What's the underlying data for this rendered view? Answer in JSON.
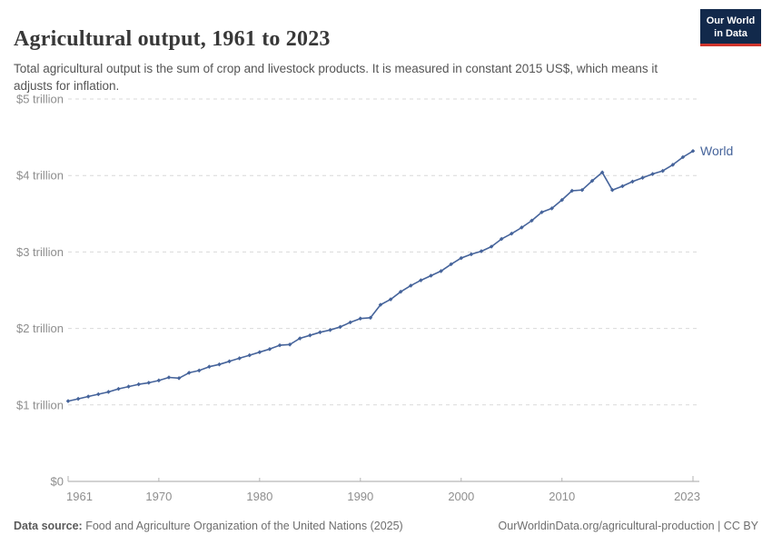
{
  "header": {
    "title": "Agricultural output, 1961 to 2023",
    "subtitle": "Total agricultural output is the sum of crop and livestock products. It is measured in constant 2015 US$, which means it adjusts for inflation."
  },
  "logo": {
    "line1": "Our World",
    "line2": "in Data"
  },
  "chart_data": {
    "type": "line",
    "title": "Agricultural output, 1961 to 2023",
    "ylabel": "",
    "xlabel": "",
    "unit": "constant 2015 US$",
    "ylim": [
      0,
      5
    ],
    "grid": "horizontal-dashed",
    "legend_position": "end-of-line",
    "y_ticks": [
      0,
      1,
      2,
      3,
      4,
      5
    ],
    "y_tick_labels": [
      "$0",
      "$1 trillion",
      "$2 trillion",
      "$3 trillion",
      "$4 trillion",
      "$5 trillion"
    ],
    "x_tick_years": [
      1961,
      1970,
      1980,
      1990,
      2000,
      2010,
      2023
    ],
    "x_tick_labels": [
      "1961",
      "1970",
      "1980",
      "1990",
      "2000",
      "2010",
      "2023"
    ],
    "x": [
      1961,
      1962,
      1963,
      1964,
      1965,
      1966,
      1967,
      1968,
      1969,
      1970,
      1971,
      1972,
      1973,
      1974,
      1975,
      1976,
      1977,
      1978,
      1979,
      1980,
      1981,
      1982,
      1983,
      1984,
      1985,
      1986,
      1987,
      1988,
      1989,
      1990,
      1991,
      1992,
      1993,
      1994,
      1995,
      1996,
      1997,
      1998,
      1999,
      2000,
      2001,
      2002,
      2003,
      2004,
      2005,
      2006,
      2007,
      2008,
      2009,
      2010,
      2011,
      2012,
      2013,
      2014,
      2015,
      2016,
      2017,
      2018,
      2019,
      2020,
      2021,
      2022,
      2023
    ],
    "series": [
      {
        "name": "World",
        "unit": "trillion US$",
        "values": [
          1.05,
          1.08,
          1.11,
          1.14,
          1.17,
          1.21,
          1.24,
          1.27,
          1.29,
          1.32,
          1.36,
          1.35,
          1.42,
          1.45,
          1.5,
          1.53,
          1.57,
          1.61,
          1.65,
          1.69,
          1.73,
          1.78,
          1.79,
          1.87,
          1.91,
          1.95,
          1.98,
          2.02,
          2.08,
          2.13,
          2.14,
          2.31,
          2.38,
          2.48,
          2.56,
          2.63,
          2.69,
          2.75,
          2.84,
          2.92,
          2.97,
          3.01,
          3.07,
          3.17,
          3.24,
          3.32,
          3.41,
          3.52,
          3.57,
          3.68,
          3.8,
          3.81,
          3.93,
          4.04,
          3.81,
          3.86,
          3.92,
          3.97,
          4.02,
          4.06,
          4.14,
          4.24,
          4.32
        ]
      }
    ]
  },
  "footer": {
    "source_label": "Data source:",
    "source_text": " Food and Agriculture Organization of the United Nations (2025)",
    "credit": "OurWorldinData.org/agricultural-production | CC BY"
  },
  "colors": {
    "line": "#46649b",
    "series_label": "#46649b",
    "title": "#383838",
    "subtitle": "#555555",
    "axis_text": "#8e8e8e",
    "grid": "#d9d9d9",
    "axis_line": "#a6a6a6",
    "tick": "#b3b3b3",
    "logo_bg": "#12294b",
    "logo_stripe": "#d0342c"
  }
}
